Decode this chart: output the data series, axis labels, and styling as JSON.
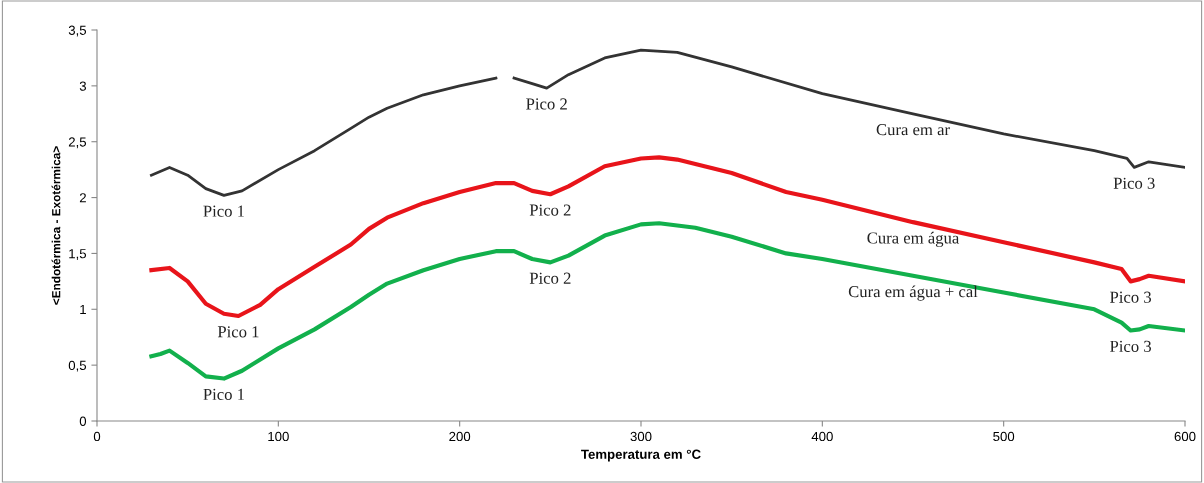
{
  "chart_data": {
    "type": "line",
    "xlabel": "Temperatura em °C",
    "ylabel": "<Endotérmica - Exotérmica>",
    "xlim": [
      0,
      600
    ],
    "ylim": [
      0,
      3.5
    ],
    "xticks": [
      0,
      100,
      200,
      300,
      400,
      500,
      600
    ],
    "yticks": [
      0,
      {
        "value": 0.5,
        "label": "0,5"
      },
      1,
      {
        "value": 1.5,
        "label": "1,5"
      },
      2,
      {
        "value": 2.5,
        "label": "2,5"
      },
      3,
      {
        "value": 3.5,
        "label": "3,5"
      }
    ],
    "grid": false,
    "legend": false,
    "marker": "none",
    "line_style": "solid",
    "series": [
      {
        "color": "#333333",
        "x": [
          30,
          40,
          50,
          60,
          70,
          80,
          100,
          120,
          140,
          150,
          160,
          180,
          200,
          220,
          225,
          230,
          240,
          248,
          260,
          280,
          300,
          320,
          350,
          400,
          450,
          500,
          550,
          568,
          572,
          580,
          600
        ],
        "values": [
          2.2,
          2.27,
          2.2,
          2.08,
          2.02,
          2.06,
          2.25,
          2.42,
          2.62,
          2.72,
          2.8,
          2.92,
          3.0,
          3.07,
          null,
          3.07,
          3.02,
          2.98,
          3.1,
          3.25,
          3.32,
          3.3,
          3.17,
          2.93,
          2.75,
          2.57,
          2.42,
          2.35,
          2.27,
          2.32,
          2.27
        ]
      },
      {
        "color": "#e8141a",
        "x": [
          30,
          40,
          50,
          60,
          70,
          78,
          90,
          100,
          120,
          140,
          150,
          160,
          180,
          200,
          220,
          230,
          240,
          250,
          260,
          280,
          300,
          310,
          320,
          350,
          380,
          400,
          450,
          500,
          550,
          565,
          570,
          575,
          580,
          600
        ],
        "values": [
          1.35,
          1.37,
          1.25,
          1.05,
          0.96,
          0.94,
          1.04,
          1.18,
          1.38,
          1.58,
          1.72,
          1.82,
          1.95,
          2.05,
          2.13,
          2.13,
          2.06,
          2.03,
          2.1,
          2.28,
          2.35,
          2.36,
          2.34,
          2.22,
          2.05,
          1.98,
          1.78,
          1.6,
          1.42,
          1.36,
          1.25,
          1.27,
          1.3,
          1.25
        ]
      },
      {
        "color": "#12b04c",
        "x": [
          30,
          35,
          40,
          50,
          60,
          70,
          80,
          100,
          120,
          140,
          150,
          160,
          180,
          200,
          220,
          230,
          240,
          250,
          260,
          280,
          300,
          310,
          330,
          350,
          380,
          400,
          450,
          500,
          550,
          565,
          570,
          575,
          580,
          600
        ],
        "values": [
          0.58,
          0.6,
          0.63,
          0.52,
          0.4,
          0.38,
          0.45,
          0.65,
          0.82,
          1.02,
          1.13,
          1.23,
          1.35,
          1.45,
          1.52,
          1.52,
          1.45,
          1.42,
          1.48,
          1.66,
          1.76,
          1.77,
          1.73,
          1.65,
          1.5,
          1.45,
          1.3,
          1.15,
          1.0,
          0.88,
          0.81,
          0.82,
          0.85,
          0.81
        ]
      }
    ],
    "annotations": [
      {
        "text": "Pico 1",
        "x": 70,
        "y": 2.02
      },
      {
        "text": "Pico 2",
        "x": 248,
        "y": 2.98
      },
      {
        "text": "Pico 3",
        "x": 572,
        "y": 2.27
      },
      {
        "text": "Pico 1",
        "x": 78,
        "y": 0.94
      },
      {
        "text": "Pico 2",
        "x": 250,
        "y": 2.03
      },
      {
        "text": "Pico 3",
        "x": 570,
        "y": 1.25
      },
      {
        "text": "Pico 1",
        "x": 70,
        "y": 0.38
      },
      {
        "text": "Pico 2",
        "x": 250,
        "y": 1.42
      },
      {
        "text": "Pico 3",
        "x": 570,
        "y": 0.81
      },
      {
        "text": "Cura em ar",
        "x": 450,
        "y": 2.75
      },
      {
        "text": "Cura em água",
        "x": 450,
        "y": 1.78
      },
      {
        "text": "Cura em água + cal",
        "x": 450,
        "y": 1.3
      }
    ]
  }
}
